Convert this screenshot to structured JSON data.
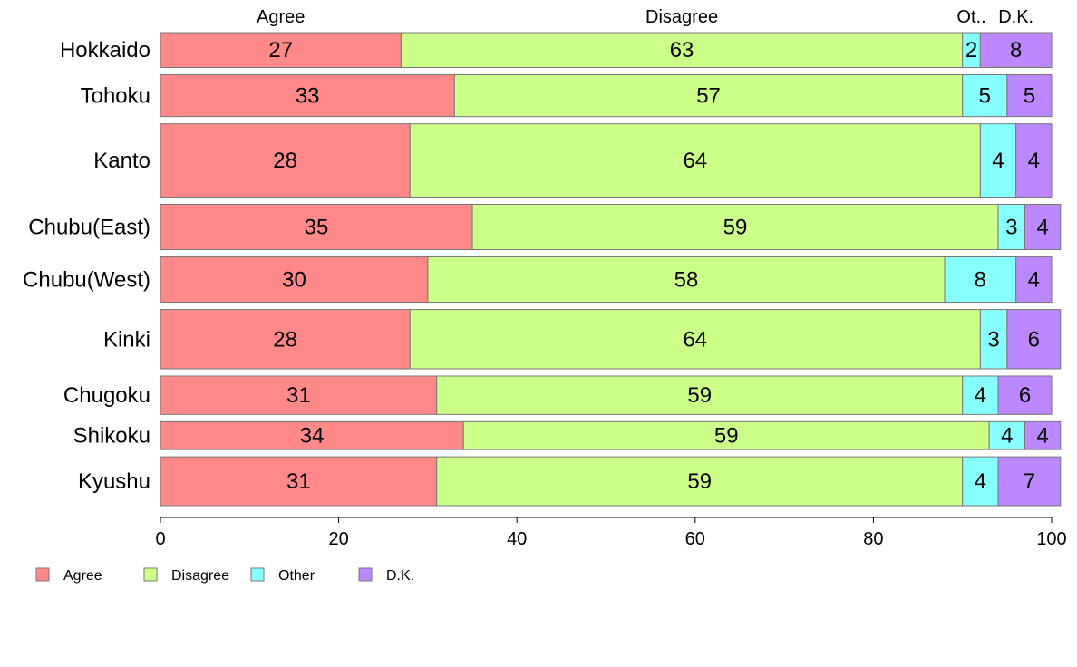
{
  "chart_data": {
    "type": "bar",
    "orientation": "horizontal",
    "stacked": true,
    "categories": [
      "Hokkaido",
      "Tohoku",
      "Kanto",
      "Chubu(East)",
      "Chubu(West)",
      "Kinki",
      "Chugoku",
      "Shikoku",
      "Kyushu"
    ],
    "series": [
      {
        "name": "Agree",
        "header": "Agree",
        "color": "#ff8888",
        "values": [
          27,
          33,
          28,
          35,
          30,
          28,
          31,
          34,
          31
        ]
      },
      {
        "name": "Disagree",
        "header": "Disagree",
        "color": "#ccff88",
        "values": [
          63,
          57,
          64,
          59,
          58,
          64,
          59,
          59,
          59
        ]
      },
      {
        "name": "Other",
        "header": "Ot..",
        "color": "#88ffff",
        "values": [
          2,
          5,
          4,
          3,
          8,
          3,
          4,
          4,
          4
        ]
      },
      {
        "name": "D.K.",
        "header": "D.K.",
        "color": "#bb88ff",
        "values": [
          8,
          5,
          4,
          4,
          4,
          6,
          6,
          4,
          7
        ]
      }
    ],
    "bar_weights": [
      1,
      1.2,
      2.1,
      1.3,
      1.3,
      1.7,
      1.1,
      0.8,
      1.4
    ],
    "xlim": [
      0,
      100
    ],
    "xticks": [
      "0",
      "20",
      "40",
      "60",
      "80",
      "100"
    ],
    "xlabel": "",
    "ylabel": "",
    "grid": false,
    "legend_position": "bottom-left"
  }
}
